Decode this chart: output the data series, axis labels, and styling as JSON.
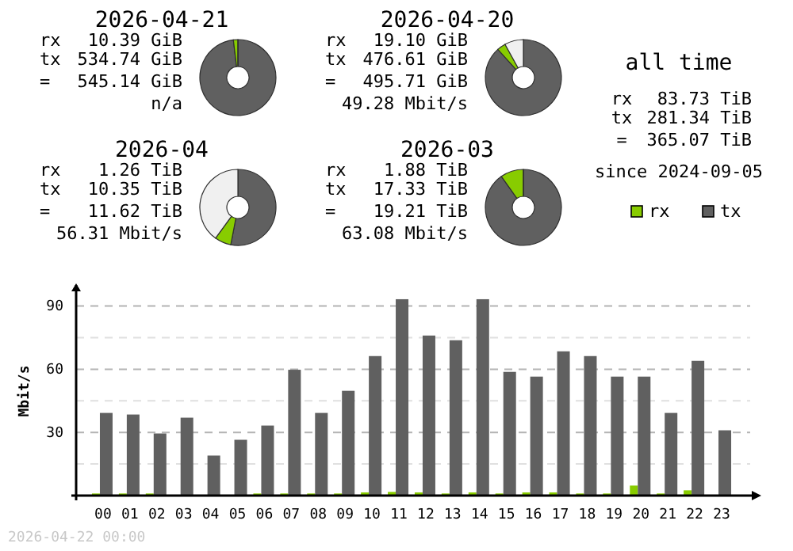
{
  "chart_data": [
    {
      "type": "donut",
      "title": "2026-04-21",
      "categories": [
        null,
        null,
        null
      ],
      "values": [
        98.1,
        1.9,
        0
      ],
      "colors": [
        "#606060",
        "#88cc00",
        "#f0f0f0"
      ],
      "annotations": [
        "rx",
        "10.39 GiB",
        "tx",
        "534.74 GiB",
        "=",
        "545.14 GiB",
        "n/a"
      ]
    },
    {
      "type": "donut",
      "title": "2026-04-20",
      "categories": [
        null,
        null,
        null
      ],
      "values": [
        88.3,
        3.7,
        8
      ],
      "colors": [
        "#606060",
        "#88cc00",
        "#f0f0f0"
      ],
      "annotations": [
        "rx",
        "19.10 GiB",
        "tx",
        "476.61 GiB",
        "=",
        "495.71 GiB",
        "49.28 Mbit/s"
      ]
    },
    {
      "type": "other",
      "title": "all time",
      "annotations": [
        "rx",
        "83.73 TiB",
        "tx",
        "281.34 TiB",
        "=",
        "365.07 TiB",
        "since 2024-09-05"
      ]
    },
    {
      "type": "donut",
      "title": "2026-04",
      "categories": [
        null,
        null,
        null
      ],
      "values": [
        53,
        7,
        40
      ],
      "colors": [
        "#606060",
        "#88cc00",
        "#f0f0f0"
      ],
      "annotations": [
        "rx",
        "1.26 TiB",
        "tx",
        "10.35 TiB",
        "=",
        "11.62 TiB",
        "56.31 Mbit/s"
      ]
    },
    {
      "type": "donut",
      "title": "2026-03",
      "categories": [
        null,
        null,
        null
      ],
      "values": [
        90.2,
        9.8,
        0
      ],
      "colors": [
        "#606060",
        "#88cc00",
        "#f0f0f0"
      ],
      "annotations": [
        "rx",
        "1.88 TiB",
        "tx",
        "17.33 TiB",
        "=",
        "19.21 TiB",
        "63.08 Mbit/s"
      ]
    },
    {
      "type": "bar",
      "ylabel": "Mbit/s",
      "categories": [
        "00",
        "01",
        "02",
        "03",
        "04",
        "05",
        "06",
        "07",
        "08",
        "09",
        "10",
        "11",
        "12",
        "13",
        "14",
        "15",
        "16",
        "17",
        "18",
        "19",
        "20",
        "21",
        "22",
        "23"
      ],
      "series": [
        {
          "name": "rx",
          "color": "#88cc00",
          "values": [
            1,
            1,
            1,
            0,
            0,
            0,
            1,
            1,
            1,
            1,
            1.5,
            1.75,
            1.5,
            1,
            1.5,
            1,
            1.5,
            1.5,
            1,
            1,
            4.75,
            1,
            2.5,
            0
          ]
        },
        {
          "name": "tx",
          "color": "#606060",
          "values": [
            39.25,
            38.5,
            29.5,
            37,
            19,
            26.5,
            33.25,
            59.75,
            39.25,
            49.75,
            66.25,
            93.25,
            76,
            73.75,
            93.25,
            58.75,
            56.5,
            68.5,
            66.25,
            56.5,
            56.5,
            39.25,
            64,
            31
          ]
        }
      ],
      "ylim": [
        0,
        100
      ],
      "yticks": [
        {
          "value": 15,
          "label": null
        },
        30,
        {
          "value": 45,
          "label": null
        },
        60,
        {
          "value": 75,
          "label": null
        },
        90
      ],
      "grid": "y",
      "legend": "top right",
      "annotations": [
        "2026-04-22 00:00"
      ]
    }
  ]
}
